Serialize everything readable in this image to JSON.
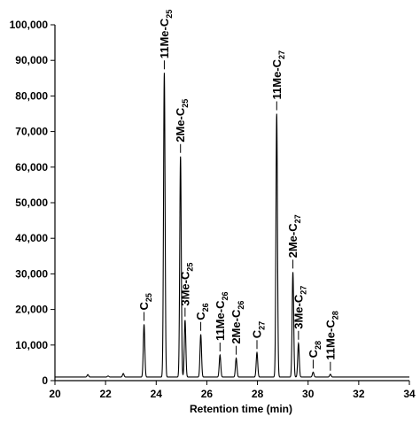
{
  "chart_data": {
    "type": "line",
    "title": "",
    "xlabel": "Retention time (min)",
    "ylabel": "",
    "xlim": [
      20,
      34
    ],
    "ylim": [
      0,
      100000
    ],
    "x_ticks": [
      20,
      22,
      24,
      26,
      28,
      30,
      32,
      34
    ],
    "y_ticks": [
      0,
      10000,
      20000,
      30000,
      40000,
      50000,
      60000,
      70000,
      80000,
      90000,
      100000
    ],
    "x_tick_labels": [
      "20",
      "22",
      "24",
      "26",
      "28",
      "30",
      "32",
      "34"
    ],
    "y_tick_labels": [
      "0",
      "10,000",
      "20,000",
      "30,000",
      "40,000",
      "50,000",
      "60,000",
      "70,000",
      "80,000",
      "90,000",
      "100,000"
    ],
    "grid": false,
    "baseline": 1000,
    "peaks": [
      {
        "label_main": "C",
        "label_sub": "25",
        "x": 23.52,
        "y": 15800
      },
      {
        "label_main": "11Me-C",
        "label_sub": "25",
        "x": 24.32,
        "y": 86500
      },
      {
        "label_main": "2Me-C",
        "label_sub": "25",
        "x": 24.96,
        "y": 63000
      },
      {
        "label_main": "3Me-C",
        "label_sub": "25",
        "x": 25.14,
        "y": 17000
      },
      {
        "label_main": "C",
        "label_sub": "26",
        "x": 25.76,
        "y": 13000
      },
      {
        "label_main": "11Me-C",
        "label_sub": "26",
        "x": 26.52,
        "y": 7200
      },
      {
        "label_main": "2Me-C",
        "label_sub": "26",
        "x": 27.16,
        "y": 6300
      },
      {
        "label_main": "C",
        "label_sub": "27",
        "x": 27.98,
        "y": 7900
      },
      {
        "label_main": "11Me-C",
        "label_sub": "27",
        "x": 28.76,
        "y": 75000
      },
      {
        "label_main": "2Me-C",
        "label_sub": "27",
        "x": 29.4,
        "y": 30500
      },
      {
        "label_main": "3Me-C",
        "label_sub": "27",
        "x": 29.62,
        "y": 10500
      },
      {
        "label_main": "C",
        "label_sub": "28",
        "x": 30.2,
        "y": 2400
      },
      {
        "label_main": "11Me-C",
        "label_sub": "28",
        "x": 30.88,
        "y": 1800
      }
    ],
    "minor_peaks": [
      {
        "x": 21.3,
        "y": 1700
      },
      {
        "x": 22.1,
        "y": 1300
      },
      {
        "x": 22.7,
        "y": 2000
      }
    ],
    "colors": {
      "trace": "#000000",
      "axis": "#000000"
    }
  }
}
